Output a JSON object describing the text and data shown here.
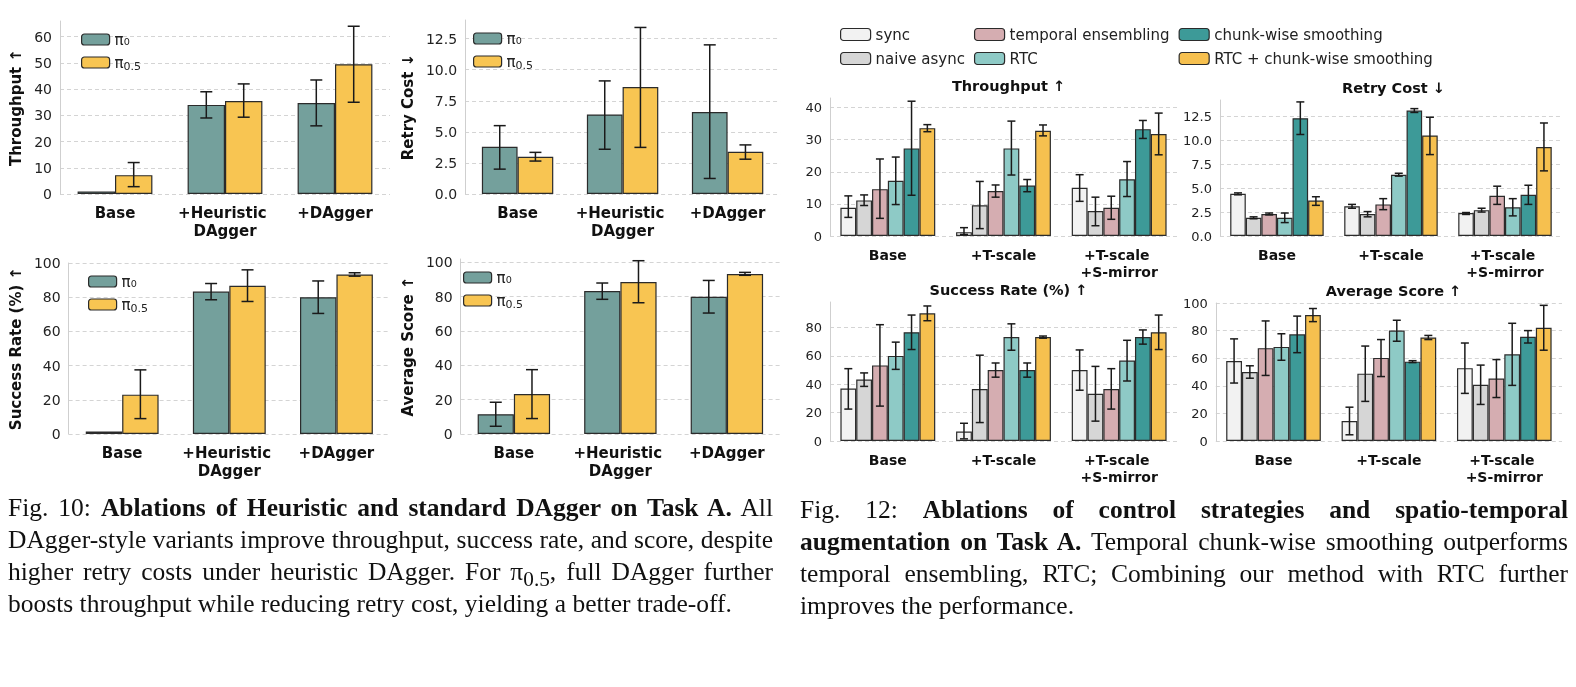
{
  "chart_data": [
    {
      "type": "bar",
      "ylabel": "Throughput ↑",
      "categories": [
        "Base",
        "+Heuristic DAgger",
        "+DAgger"
      ],
      "series": [
        {
          "name": "π₀",
          "color": "#74a09c",
          "values": [
            1,
            34,
            34.7
          ],
          "errors": [
            null,
            [
              29,
              39
            ],
            [
              26,
              43.5
            ]
          ]
        },
        {
          "name": "π$_{0.5}$",
          "color": "#f8c552",
          "values": [
            7.2,
            35.5,
            49.5
          ],
          "errors": [
            [
              2.8,
              12
            ],
            [
              29.3,
              42
            ],
            [
              35,
              64
            ]
          ]
        }
      ],
      "ylim": [
        0,
        66
      ],
      "yticks": [
        0,
        10,
        20,
        30,
        40,
        50,
        60
      ],
      "grid": "y",
      "legend": "top left",
      "annotations": [
        "Fig. 10:",
        "Ablations of Heuristic and standard DAgger on Task A.",
        "All DAgger-style variants improve throughput, success rate, and score, despite higher retry costs under heuristic DAgger. For π$_{0.5}$, full DAgger further boosts throughput while reducing retry cost, yielding a better trade-off."
      ]
    },
    {
      "type": "bar",
      "ylabel": "Retry Cost ↓",
      "categories": [
        "Base",
        "+Heuristic DAgger",
        "+DAgger"
      ],
      "series": [
        {
          "name": "π₀",
          "color": "#74a09c",
          "values": [
            3.8,
            6.4,
            6.6
          ],
          "errors": [
            [
              2,
              5.5
            ],
            [
              3.6,
              9.1
            ],
            [
              1.25,
              12
            ]
          ]
        },
        {
          "name": "π$_{0.5}$",
          "color": "#f8c552",
          "values": [
            3,
            8.6,
            3.4
          ],
          "errors": [
            [
              2.65,
              3.35
            ],
            [
              3.75,
              13.4
            ],
            [
              2.8,
              3.95
            ]
          ]
        }
      ],
      "ylim": [
        0,
        14
      ],
      "yticks": [
        {
          "value": 0,
          "label": "0.0"
        },
        2.5,
        {
          "value": 5,
          "label": "5.0"
        },
        7.5,
        {
          "value": 10,
          "label": "10.0"
        },
        12.5
      ],
      "grid": "y",
      "legend": "top left"
    },
    {
      "type": "bar",
      "ylabel": "Success Rate (%) ↑",
      "categories": [
        "Base",
        "+Heuristic DAgger",
        "+DAgger"
      ],
      "series": [
        {
          "name": "π₀",
          "color": "#74a09c",
          "values": [
            1.5,
            83.3,
            80
          ],
          "errors": [
            null,
            [
              78.5,
              88
            ],
            [
              70.5,
              89.5
            ]
          ]
        },
        {
          "name": "π$_{0.5}$",
          "color": "#f8c552",
          "values": [
            23,
            86.7,
            93.3
          ],
          "errors": [
            [
              9,
              37.5
            ],
            [
              77.5,
              96
            ],
            [
              92.3,
              94.3
            ]
          ]
        }
      ],
      "ylim": [
        0,
        100
      ],
      "yticks": [
        0,
        20,
        40,
        60,
        80,
        100
      ],
      "grid": "y",
      "legend": "top left"
    },
    {
      "type": "bar",
      "ylabel": "Average Score ↑",
      "categories": [
        "Base",
        "+Heuristic DAgger",
        "+DAgger"
      ],
      "series": [
        {
          "name": "π₀",
          "color": "#74a09c",
          "values": [
            11.5,
            83.3,
            80
          ],
          "errors": [
            [
              4.5,
              18.5
            ],
            [
              78.5,
              88
            ],
            [
              70.5,
              89.5
            ]
          ]
        },
        {
          "name": "π$_{0.5}$",
          "color": "#f8c552",
          "values": [
            23.3,
            88.6,
            93.3
          ],
          "errors": [
            [
              9,
              37.5
            ],
            [
              76.5,
              101
            ],
            [
              92.5,
              94.2
            ]
          ]
        }
      ],
      "ylim": [
        0,
        102
      ],
      "yticks": [
        0,
        20,
        40,
        60,
        80,
        100
      ],
      "grid": "y",
      "legend": "top left"
    },
    {
      "type": "bar",
      "title": "Throughput ↑",
      "categories": [
        "Base",
        "+T-scale",
        "+T-scale +S-mirror"
      ],
      "series": [
        {
          "name": "sync",
          "color": "#f2f2f2",
          "values": [
            8.8,
            1.2,
            15
          ],
          "errors": [
            [
              5.8,
              12.5
            ],
            [
              0.5,
              2.6
            ],
            [
              10.8,
              19.1
            ]
          ]
        },
        {
          "name": "naive async",
          "color": "#d6d6d6",
          "values": [
            11.1,
            9.6,
            7.8
          ],
          "errors": [
            [
              9.5,
              12.8
            ],
            [
              2.3,
              17
            ],
            [
              3.2,
              12.1
            ]
          ]
        },
        {
          "name": "temporal ensembling",
          "color": "#d5adb1",
          "values": [
            14.6,
            14,
            8.8
          ],
          "errors": [
            [
              5.5,
              24
            ],
            [
              12.1,
              15.9
            ],
            [
              5.2,
              12.4
            ]
          ]
        },
        {
          "name": "RTC",
          "color": "#8ecac6",
          "values": [
            17.2,
            27.3,
            17.7
          ],
          "errors": [
            [
              9.8,
              24.6
            ],
            [
              19,
              35.8
            ],
            [
              12.3,
              23.2
            ]
          ]
        },
        {
          "name": "chunk-wise smoothing",
          "color": "#3d9a98",
          "values": [
            27.3,
            15.7,
            33.3
          ],
          "errors": [
            [
              12.7,
              42
            ],
            [
              13.8,
              17.6
            ],
            [
              30.4,
              36
            ]
          ]
        },
        {
          "name": "RTC + chunk-wise smoothing",
          "color": "#f6c04f",
          "values": [
            33.6,
            32.8,
            31.8
          ],
          "errors": [
            [
              32.5,
              34.7
            ],
            [
              31.2,
              34.6
            ],
            [
              25.3,
              38.3
            ]
          ]
        }
      ],
      "ylim": [
        0,
        43
      ],
      "yticks": [
        0,
        10,
        20,
        30,
        40
      ],
      "grid": "y",
      "legend": "top",
      "annotations": [
        "Fig. 12:",
        "Ablations of control strategies and spatio-temporal augmentation on Task A.",
        "Temporal chunk-wise smoothing outperforms temporal ensembling, RTC; Combining our method with RTC further improves the performance."
      ]
    },
    {
      "type": "bar",
      "title": "Retry Cost ↓",
      "categories": [
        "Base",
        "+T-scale",
        "+T-scale +S-mirror"
      ],
      "series": [
        {
          "color": "#f2f2f2",
          "values": [
            4.4,
            3.1,
            2.4
          ],
          "errors": [
            [
              4.3,
              4.5
            ],
            [
              2.9,
              3.3
            ],
            [
              2.25,
              2.45
            ]
          ]
        },
        {
          "color": "#d6d6d6",
          "values": [
            1.9,
            2.3,
            2.7
          ],
          "errors": [
            [
              1.8,
              2
            ],
            [
              2,
              2.55
            ],
            [
              2.5,
              2.9
            ]
          ]
        },
        {
          "color": "#d5adb1",
          "values": [
            2.3,
            3.3,
            4.2
          ],
          "errors": [
            [
              2.2,
              2.4
            ],
            [
              2.75,
              3.9
            ],
            [
              3.3,
              5.2
            ]
          ]
        },
        {
          "color": "#8ecac6",
          "values": [
            1.9,
            6.4,
            3
          ],
          "errors": [
            [
              1.4,
              2.4
            ],
            [
              6.25,
              6.55
            ],
            [
              2.1,
              3.9
            ]
          ]
        },
        {
          "color": "#3d9a98",
          "values": [
            12.3,
            13.1,
            4.3
          ],
          "errors": [
            [
              10.6,
              14
            ],
            [
              12.9,
              13.3
            ],
            [
              3.3,
              5.3
            ]
          ]
        },
        {
          "color": "#f6c04f",
          "values": [
            3.7,
            10.5,
            9.3
          ],
          "errors": [
            [
              3.2,
              4.1
            ],
            [
              8.5,
              12.4
            ],
            [
              6.8,
              11.8
            ]
          ]
        }
      ],
      "ylim": [
        0,
        14.2
      ],
      "yticks": [
        {
          "value": 0,
          "label": "0.0"
        },
        2.5,
        {
          "value": 5,
          "label": "5.0"
        },
        7.5,
        {
          "value": 10,
          "label": "10.0"
        },
        12.5
      ],
      "grid": "y"
    },
    {
      "type": "bar",
      "title": "Success Rate (%) ↑",
      "categories": [
        "Base",
        "+T-scale",
        "+T-scale +S-mirror"
      ],
      "series": [
        {
          "color": "#f2f2f2",
          "values": [
            37,
            6.7,
            50
          ],
          "errors": [
            [
              22.5,
              51
            ],
            [
              1.5,
              12.5
            ],
            [
              35.8,
              64.2
            ]
          ]
        },
        {
          "color": "#d6d6d6",
          "values": [
            43.3,
            36.7,
            33.3
          ],
          "errors": [
            [
              38.5,
              48
            ],
            [
              13,
              60.5
            ],
            [
              14,
              52.6
            ]
          ]
        },
        {
          "color": "#d5adb1",
          "values": [
            53.3,
            50,
            36.7
          ],
          "errors": [
            [
              24.6,
              82
            ],
            [
              45,
              55
            ],
            [
              22.5,
              51
            ]
          ]
        },
        {
          "color": "#8ecac6",
          "values": [
            60,
            73.3,
            56.7
          ],
          "errors": [
            [
              50.5,
              69.7
            ],
            [
              64,
              82.6
            ],
            [
              42.3,
              71
            ]
          ]
        },
        {
          "color": "#3d9a98",
          "values": [
            76.7,
            50,
            73.3
          ],
          "errors": [
            [
              64.5,
              88.8
            ],
            [
              45,
              55
            ],
            [
              68.3,
              78.3
            ]
          ]
        },
        {
          "color": "#f6c04f",
          "values": [
            90,
            73.3,
            76.7
          ],
          "errors": [
            [
              84.8,
              95.2
            ],
            [
              72.5,
              74
            ],
            [
              64.5,
              88.8
            ]
          ]
        }
      ],
      "ylim": [
        0,
        98
      ],
      "yticks": [
        0,
        20,
        40,
        60,
        80
      ],
      "grid": "y"
    },
    {
      "type": "bar",
      "title": "Average Score ↑",
      "categories": [
        "Base",
        "+T-scale",
        "+T-scale +S-mirror"
      ],
      "series": [
        {
          "color": "#f2f2f2",
          "values": [
            58,
            14.5,
            52.8
          ],
          "errors": [
            [
              42,
              74
            ],
            [
              4.5,
              24.5
            ],
            [
              34.5,
              71
            ]
          ]
        },
        {
          "color": "#d6d6d6",
          "values": [
            50,
            48.8,
            40.8
          ],
          "errors": [
            [
              45.5,
              54.5
            ],
            [
              28.7,
              68.8
            ],
            [
              26.5,
              55
            ]
          ]
        },
        {
          "color": "#d5adb1",
          "values": [
            67.3,
            60.2,
            45.3
          ],
          "errors": [
            [
              47.5,
              87
            ],
            [
              46.7,
              73.5
            ],
            [
              31.5,
              59
            ]
          ]
        },
        {
          "color": "#8ecac6",
          "values": [
            68.2,
            80,
            62.8
          ],
          "errors": [
            [
              58.5,
              77.7
            ],
            [
              72.3,
              87.5
            ],
            [
              40.3,
              85.3
            ]
          ]
        },
        {
          "color": "#3d9a98",
          "values": [
            77.3,
            57.5,
            75.5
          ],
          "errors": [
            [
              64,
              90.5
            ],
            [
              56.8,
              58.2
            ],
            [
              71,
              80
            ]
          ]
        },
        {
          "color": "#f6c04f",
          "values": [
            91.3,
            75,
            82
          ],
          "errors": [
            [
              86.5,
              96
            ],
            [
              73.5,
              76.5
            ],
            [
              65.8,
              98.3
            ]
          ]
        }
      ],
      "ylim": [
        0,
        100
      ],
      "yticks": [
        0,
        20,
        40,
        60,
        80,
        100
      ],
      "grid": "y"
    }
  ]
}
